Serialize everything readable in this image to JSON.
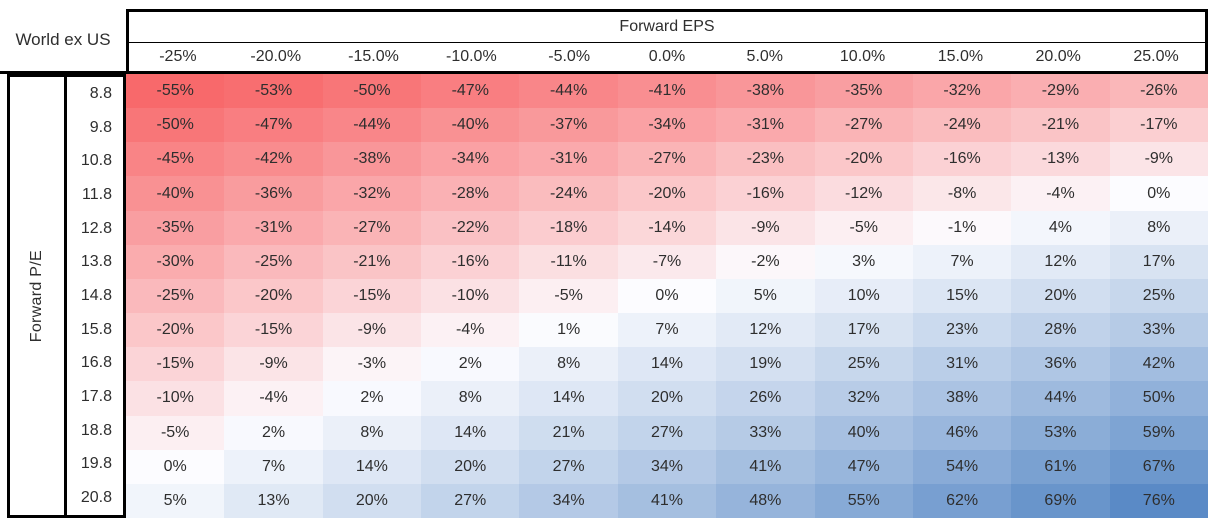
{
  "chart_data": {
    "type": "heatmap",
    "title": "World ex US",
    "x_axis": {
      "label": "Forward EPS",
      "ticks": [
        "-25%",
        "-20.0%",
        "-15.0%",
        "-10.0%",
        "-5.0%",
        "0.0%",
        "5.0%",
        "10.0%",
        "15.0%",
        "20.0%",
        "25.0%"
      ]
    },
    "y_axis": {
      "label": "Forward P/E",
      "ticks": [
        "8.8",
        "9.8",
        "10.8",
        "11.8",
        "12.8",
        "13.8",
        "14.8",
        "15.8",
        "16.8",
        "17.8",
        "18.8",
        "19.8",
        "20.8"
      ]
    },
    "values": [
      [
        -55,
        -53,
        -50,
        -47,
        -44,
        -41,
        -38,
        -35,
        -32,
        -29,
        -26
      ],
      [
        -50,
        -47,
        -44,
        -40,
        -37,
        -34,
        -31,
        -27,
        -24,
        -21,
        -17
      ],
      [
        -45,
        -42,
        -38,
        -34,
        -31,
        -27,
        -23,
        -20,
        -16,
        -13,
        -9
      ],
      [
        -40,
        -36,
        -32,
        -28,
        -24,
        -20,
        -16,
        -12,
        -8,
        -4,
        0
      ],
      [
        -35,
        -31,
        -27,
        -22,
        -18,
        -14,
        -9,
        -5,
        -1,
        4,
        8
      ],
      [
        -30,
        -25,
        -21,
        -16,
        -11,
        -7,
        -2,
        3,
        7,
        12,
        17
      ],
      [
        -25,
        -20,
        -15,
        -10,
        -5,
        0,
        5,
        10,
        15,
        20,
        25
      ],
      [
        -20,
        -15,
        -9,
        -4,
        1,
        7,
        12,
        17,
        23,
        28,
        33
      ],
      [
        -15,
        -9,
        -3,
        2,
        8,
        14,
        19,
        25,
        31,
        36,
        42
      ],
      [
        -10,
        -4,
        2,
        8,
        14,
        20,
        26,
        32,
        38,
        44,
        50
      ],
      [
        -5,
        2,
        8,
        14,
        21,
        27,
        33,
        40,
        46,
        53,
        59
      ],
      [
        0,
        7,
        14,
        20,
        27,
        34,
        41,
        47,
        54,
        61,
        67
      ],
      [
        5,
        13,
        20,
        27,
        34,
        41,
        48,
        55,
        62,
        69,
        76
      ]
    ],
    "value_suffix": "%",
    "colorscale": {
      "min_value": -55,
      "mid_value": 0,
      "max_value": 76,
      "min_color": "#F8696B",
      "mid_color": "#FCFCFF",
      "max_color": "#5A8AC6"
    },
    "grid": false,
    "legend": false
  }
}
